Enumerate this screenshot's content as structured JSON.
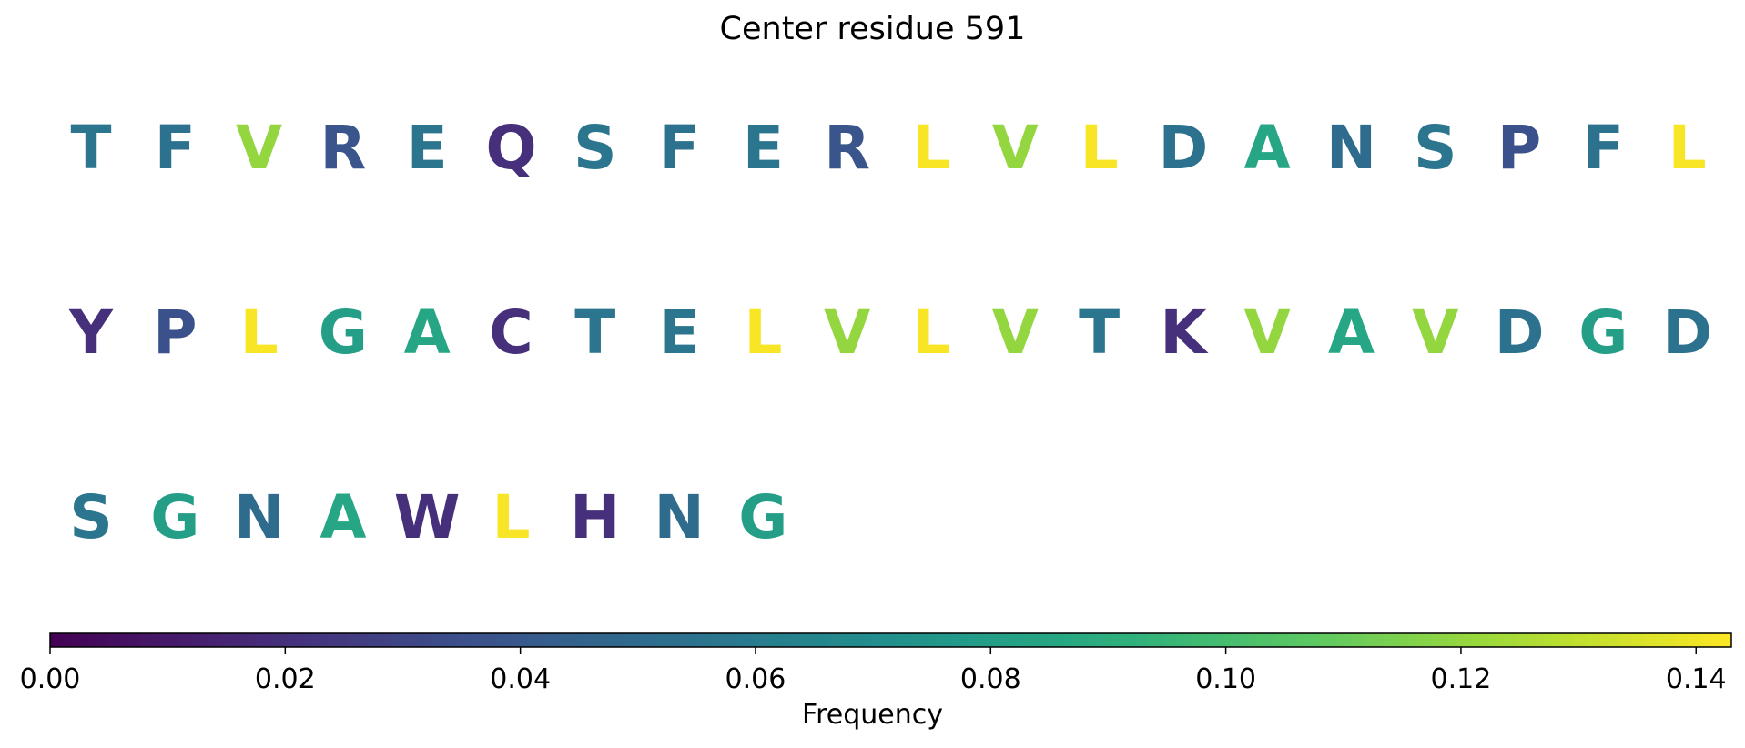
{
  "chart_data": {
    "type": "sequence-heatmap",
    "title": "Center residue 591",
    "residues_per_row": 20,
    "residues": [
      {
        "letter": "T",
        "value": 0.056
      },
      {
        "letter": "F",
        "value": 0.054
      },
      {
        "letter": "V",
        "value": 0.12
      },
      {
        "letter": "R",
        "value": 0.038
      },
      {
        "letter": "E",
        "value": 0.056
      },
      {
        "letter": "Q",
        "value": 0.02
      },
      {
        "letter": "S",
        "value": 0.056
      },
      {
        "letter": "F",
        "value": 0.054
      },
      {
        "letter": "E",
        "value": 0.056
      },
      {
        "letter": "R",
        "value": 0.038
      },
      {
        "letter": "L",
        "value": 0.142
      },
      {
        "letter": "V",
        "value": 0.12
      },
      {
        "letter": "L",
        "value": 0.142
      },
      {
        "letter": "D",
        "value": 0.054
      },
      {
        "letter": "A",
        "value": 0.085
      },
      {
        "letter": "N",
        "value": 0.05
      },
      {
        "letter": "S",
        "value": 0.056
      },
      {
        "letter": "P",
        "value": 0.036
      },
      {
        "letter": "F",
        "value": 0.054
      },
      {
        "letter": "L",
        "value": 0.142
      },
      {
        "letter": "Y",
        "value": 0.02
      },
      {
        "letter": "P",
        "value": 0.036
      },
      {
        "letter": "L",
        "value": 0.142
      },
      {
        "letter": "G",
        "value": 0.08
      },
      {
        "letter": "A",
        "value": 0.085
      },
      {
        "letter": "C",
        "value": 0.02
      },
      {
        "letter": "T",
        "value": 0.056
      },
      {
        "letter": "E",
        "value": 0.056
      },
      {
        "letter": "L",
        "value": 0.142
      },
      {
        "letter": "V",
        "value": 0.12
      },
      {
        "letter": "L",
        "value": 0.142
      },
      {
        "letter": "V",
        "value": 0.12
      },
      {
        "letter": "T",
        "value": 0.056
      },
      {
        "letter": "K",
        "value": 0.02
      },
      {
        "letter": "V",
        "value": 0.12
      },
      {
        "letter": "A",
        "value": 0.085
      },
      {
        "letter": "V",
        "value": 0.12
      },
      {
        "letter": "D",
        "value": 0.054
      },
      {
        "letter": "G",
        "value": 0.08
      },
      {
        "letter": "D",
        "value": 0.054
      },
      {
        "letter": "S",
        "value": 0.056
      },
      {
        "letter": "G",
        "value": 0.08
      },
      {
        "letter": "N",
        "value": 0.05
      },
      {
        "letter": "A",
        "value": 0.085
      },
      {
        "letter": "W",
        "value": 0.02
      },
      {
        "letter": "L",
        "value": 0.142
      },
      {
        "letter": "H",
        "value": 0.02
      },
      {
        "letter": "N",
        "value": 0.05
      },
      {
        "letter": "G",
        "value": 0.08
      }
    ],
    "colorbar": {
      "label": "Frequency",
      "colormap": "viridis",
      "range": [
        0,
        0.143
      ],
      "ticks": [
        0.0,
        0.02,
        0.04,
        0.06,
        0.08,
        0.1,
        0.12,
        0.14
      ],
      "tick_labels": [
        "0.00",
        "0.02",
        "0.04",
        "0.06",
        "0.08",
        "0.10",
        "0.12",
        "0.14"
      ],
      "orientation": "horizontal"
    }
  }
}
